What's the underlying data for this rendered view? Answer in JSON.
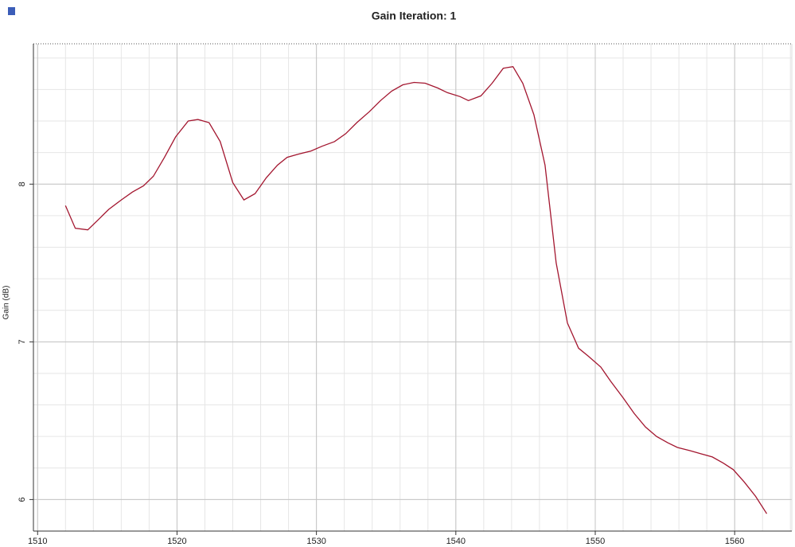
{
  "chart_data": {
    "type": "line",
    "title": "Gain Iteration: 1",
    "ylabel": "Gain (dB)",
    "x": [
      1512.0,
      1512.7,
      1513.6,
      1514.3,
      1515.1,
      1516.0,
      1516.8,
      1517.6,
      1518.3,
      1519.1,
      1519.9,
      1520.8,
      1521.5,
      1522.3,
      1523.1,
      1524.0,
      1524.8,
      1525.6,
      1526.4,
      1527.2,
      1527.9,
      1528.7,
      1529.6,
      1530.4,
      1531.3,
      1532.1,
      1532.9,
      1533.8,
      1534.6,
      1535.4,
      1536.2,
      1537.0,
      1537.8,
      1538.7,
      1539.4,
      1540.3,
      1540.9,
      1541.8,
      1542.6,
      1543.4,
      1544.1,
      1544.8,
      1545.6,
      1546.4,
      1547.2,
      1548.0,
      1548.8,
      1549.5,
      1550.4,
      1551.1,
      1552.0,
      1552.8,
      1553.6,
      1554.4,
      1555.2,
      1555.9,
      1556.8,
      1557.6,
      1558.4,
      1559.2,
      1559.9,
      1560.7,
      1561.5,
      1562.3
    ],
    "series": [
      {
        "color": "#a3162f",
        "values": [
          7.864,
          7.72,
          7.71,
          7.77,
          7.84,
          7.9,
          7.95,
          7.99,
          8.05,
          8.17,
          8.3,
          8.4,
          8.41,
          8.39,
          8.27,
          8.01,
          7.9,
          7.94,
          8.04,
          8.12,
          8.17,
          8.19,
          8.21,
          8.24,
          8.27,
          8.32,
          8.39,
          8.46,
          8.53,
          8.59,
          8.63,
          8.645,
          8.64,
          8.61,
          8.58,
          8.555,
          8.53,
          8.56,
          8.64,
          8.735,
          8.745,
          8.64,
          8.44,
          8.12,
          7.5,
          7.12,
          6.96,
          6.91,
          6.84,
          6.75,
          6.645,
          6.545,
          6.46,
          6.4,
          6.36,
          6.33,
          6.31,
          6.29,
          6.27,
          6.23,
          6.19,
          6.11,
          6.02,
          5.91
        ]
      }
    ],
    "xlim": [
      1509.7,
      1564.1
    ],
    "xticks": [
      1510,
      1520,
      1530,
      1540,
      1550,
      1560
    ],
    "ylim": [
      5.8,
      8.89
    ],
    "yticks": [
      6,
      7,
      8
    ],
    "grid": true,
    "minor_grid": true
  }
}
